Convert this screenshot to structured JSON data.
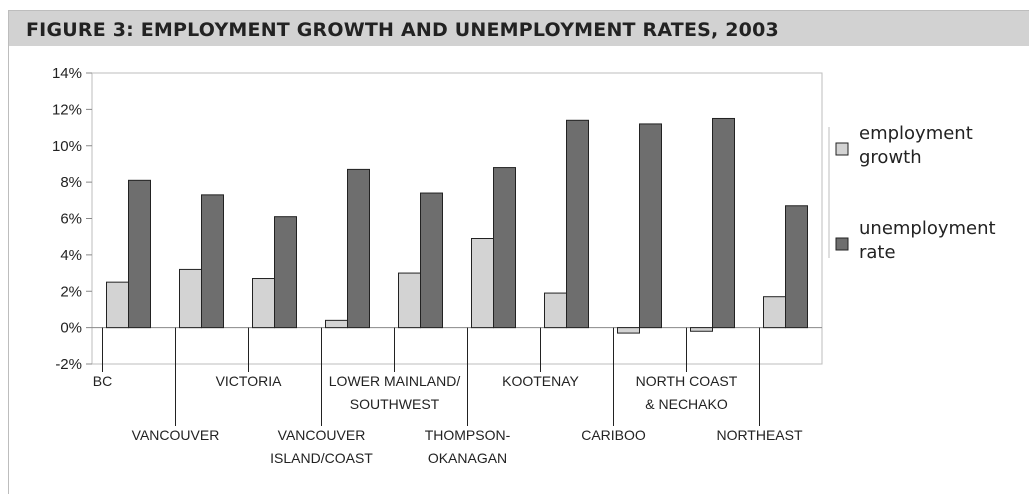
{
  "figure": {
    "title": "FIGURE 3: EMPLOYMENT GROWTH AND UNEMPLOYMENT RATES, 2003"
  },
  "colors": {
    "employment": "#d3d3d3",
    "unemployment": "#6e6e6e",
    "stroke": "#222222",
    "band": "#d2d2d2"
  },
  "chart_data": {
    "type": "bar",
    "title": "FIGURE 3: EMPLOYMENT GROWTH AND UNEMPLOYMENT RATES, 2003",
    "xlabel": "",
    "ylabel": "",
    "ylim": [
      -2,
      14
    ],
    "yticks": [
      "14%",
      "12%",
      "10%",
      "8%",
      "6%",
      "4%",
      "2%",
      "0%",
      "-2%"
    ],
    "ytick_values": [
      14,
      12,
      10,
      8,
      6,
      4,
      2,
      0,
      -2
    ],
    "grid": false,
    "legend": "right",
    "categories": [
      {
        "lines": [
          "BC"
        ],
        "row": 0
      },
      {
        "lines": [
          "VANCOUVER"
        ],
        "row": 1
      },
      {
        "lines": [
          "VICTORIA"
        ],
        "row": 0
      },
      {
        "lines": [
          "VANCOUVER",
          "ISLAND/COAST"
        ],
        "row": 1
      },
      {
        "lines": [
          "LOWER MAINLAND/",
          "SOUTHWEST"
        ],
        "row": 0
      },
      {
        "lines": [
          "THOMPSON-",
          "OKANAGAN"
        ],
        "row": 1
      },
      {
        "lines": [
          "KOOTENAY"
        ],
        "row": 0
      },
      {
        "lines": [
          "CARIBOO"
        ],
        "row": 1
      },
      {
        "lines": [
          "NORTH COAST",
          "& NECHAKO"
        ],
        "row": 0
      },
      {
        "lines": [
          "NORTHEAST"
        ],
        "row": 1
      }
    ],
    "series": [
      {
        "name": "employment growth",
        "legend_lines": [
          "employment",
          "growth"
        ],
        "values": [
          2.5,
          3.2,
          2.7,
          0.4,
          3.0,
          4.9,
          1.9,
          -0.3,
          -0.2,
          1.7
        ]
      },
      {
        "name": "unemployment rate",
        "legend_lines": [
          "unemployment",
          "rate"
        ],
        "values": [
          8.1,
          7.3,
          6.1,
          8.7,
          7.4,
          8.8,
          11.4,
          11.2,
          11.5,
          6.7
        ]
      }
    ]
  }
}
